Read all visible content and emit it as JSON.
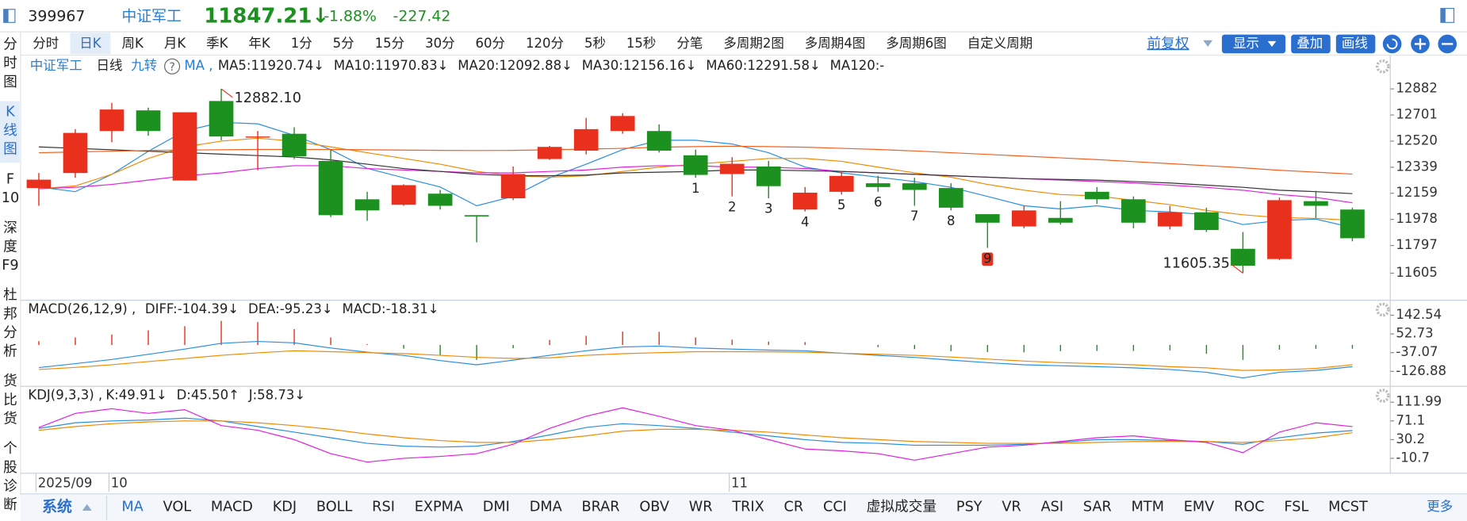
{
  "header": {
    "code": "399967",
    "name": "中证军工",
    "price": "11847.21↓",
    "change_pct": "-1.88%",
    "change": "-227.42"
  },
  "period_tabs": [
    "分时",
    "日K",
    "周K",
    "月K",
    "季K",
    "年K",
    "1分",
    "5分",
    "15分",
    "30分",
    "60分",
    "120分",
    "5秒",
    "15秒",
    "分笔",
    "多周期2图",
    "多周期4图",
    "多周期6图",
    "自定义周期"
  ],
  "active_tab": "日K",
  "toolbar": {
    "adjust": "前复权",
    "show": "显示",
    "overlay": "叠加",
    "draw": "画线"
  },
  "sidebar": [
    "分时图",
    "K线图",
    "F10",
    "深度F9",
    "杜邦分析",
    "货比货",
    "个股诊断"
  ],
  "active_side": "K线图",
  "chart": {
    "type": "candlestick",
    "title": "中证军工",
    "period": "日线",
    "nine_turn_label": "九转",
    "help": "?",
    "indicator": "MA ,",
    "ylim": [
      11424,
      13096
    ],
    "yticks": [
      12882,
      12701,
      12520,
      12339,
      12159,
      11978,
      11797,
      11605
    ],
    "up_color": "#e8301c",
    "down_color": "#1c9120",
    "open": [
      12195,
      12299,
      12590,
      12733,
      12247,
      12798,
      12545,
      12571,
      12383,
      12117,
      12079,
      12156,
      12007,
      12124,
      12396,
      12454,
      12590,
      12590,
      12422,
      12292,
      12344,
      12046,
      12169,
      12228,
      12228,
      12195,
      12014,
      11929,
      11988,
      12169,
      12117,
      11929,
      12027,
      11774,
      11703,
      12104,
      12046
    ],
    "close": [
      12253,
      12577,
      12739,
      12590,
      12720,
      12552,
      12552,
      12415,
      12007,
      12040,
      12215,
      12072,
      11998,
      12292,
      12480,
      12603,
      12694,
      12454,
      12286,
      12363,
      12208,
      12163,
      12279,
      12202,
      12182,
      12059,
      11955,
      12040,
      11955,
      12117,
      11955,
      12027,
      11904,
      11657,
      12111,
      12072,
      11847.21
    ],
    "high": [
      12299,
      12603,
      12785,
      12752,
      12720,
      12882.1,
      12590,
      12616,
      12461,
      12169,
      12221,
      12182,
      12007,
      12344,
      12487,
      12681,
      12713,
      12636,
      12461,
      12409,
      12383,
      12202,
      12312,
      12279,
      12266,
      12228,
      12014,
      12072,
      12104,
      12202,
      12137,
      12072,
      12059,
      11890,
      12130,
      12176,
      12059
    ],
    "low": [
      12072,
      12266,
      12513,
      12558,
      12247,
      12526,
      12318,
      12396,
      11994,
      11968,
      12072,
      12046,
      11819,
      12111,
      12390,
      12428,
      12571,
      12441,
      12266,
      12137,
      12124,
      12033,
      12150,
      12169,
      12072,
      12040,
      11780,
      11916,
      11942,
      12085,
      11916,
      11910,
      11890,
      11605.35,
      11696,
      11988,
      11826
    ],
    "high_label": "12882.10",
    "low_label": "11605.35",
    "nine_turn": [
      null,
      null,
      null,
      null,
      null,
      null,
      null,
      null,
      null,
      null,
      null,
      null,
      null,
      null,
      null,
      null,
      null,
      null,
      "1",
      "2",
      "3",
      "4",
      "5",
      "6",
      "7",
      "8",
      "9",
      null,
      null,
      null,
      null,
      null,
      null,
      null,
      null,
      null,
      null
    ],
    "ma": [
      {
        "name": "MA5:11920.74↓",
        "color": "#2a8ee0",
        "values": [
          12202,
          12170,
          12290,
          12450,
          12590,
          12650,
          12640,
          12560,
          12461,
          12331,
          12266,
          12202,
          12072,
          12137,
          12266,
          12360,
          12461,
          12526,
          12526,
          12500,
          12440,
          12340,
          12300,
          12270,
          12240,
          12200,
          12137,
          12072,
          12050,
          12072,
          12040,
          12030,
          12010,
          11942,
          11970,
          11980,
          11920.74
        ]
      },
      {
        "name": "MA10:11970.83↓",
        "color": "#f08a00",
        "values": [
          12190,
          12210,
          12290,
          12400,
          12480,
          12520,
          12540,
          12520,
          12480,
          12440,
          12400,
          12360,
          12310,
          12280,
          12270,
          12280,
          12310,
          12340,
          12360,
          12380,
          12400,
          12400,
          12380,
          12340,
          12300,
          12270,
          12220,
          12180,
          12150,
          12140,
          12110,
          12080,
          12040,
          12010,
          11990,
          11985,
          11970.83
        ]
      },
      {
        "name": "MA20:12092.88↓",
        "color": "#e020e0",
        "values": [
          12190,
          12200,
          12220,
          12250,
          12280,
          12300,
          12330,
          12350,
          12350,
          12330,
          12320,
          12310,
          12300,
          12300,
          12310,
          12320,
          12340,
          12350,
          12350,
          12340,
          12340,
          12330,
          12310,
          12300,
          12290,
          12280,
          12270,
          12260,
          12250,
          12240,
          12230,
          12215,
          12200,
          12180,
          12150,
          12130,
          12092.88
        ]
      },
      {
        "name": "MA30:12156.16↓",
        "color": "#333333",
        "values": [
          12480,
          12470,
          12460,
          12450,
          12440,
          12430,
          12420,
          12410,
          12390,
          12360,
          12330,
          12310,
          12290,
          12280,
          12280,
          12285,
          12300,
          12305,
          12310,
          12320,
          12320,
          12315,
          12310,
          12300,
          12290,
          12280,
          12270,
          12260,
          12255,
          12250,
          12240,
          12230,
          12215,
          12200,
          12180,
          12170,
          12156.16
        ]
      },
      {
        "name": "MA60:12291.58↓",
        "color": "#f06020",
        "values": [
          12440,
          12445,
          12450,
          12455,
          12458,
          12460,
          12462,
          12462,
          12462,
          12460,
          12458,
          12456,
          12455,
          12456,
          12460,
          12465,
          12470,
          12478,
          12482,
          12485,
          12482,
          12478,
          12470,
          12462,
          12452,
          12440,
          12428,
          12416,
          12404,
          12392,
          12378,
          12364,
          12350,
          12335,
          12318,
          12305,
          12291.58
        ]
      },
      {
        "name": "MA120:-",
        "color": "#7040b0"
      }
    ]
  },
  "macd": {
    "title": "MACD(26,12,9) ,",
    "ylim": [
      -194.2,
      209.9
    ],
    "yticks": [
      142.54,
      52.73,
      -37.07,
      -126.88
    ],
    "diff": {
      "name": "DIFF:-104.39↓",
      "color": "#2a8ee0",
      "values": [
        -108.9,
        -90,
        -70,
        -45,
        -20,
        7.8,
        16.8,
        10,
        -14.6,
        -35,
        -50.5,
        -75,
        -95.4,
        -73,
        -50,
        -28.1,
        -10,
        -5.6,
        -14.6,
        -20,
        -25,
        -28.1,
        -40,
        -50.5,
        -60,
        -73,
        -85,
        -95.4,
        -100,
        -104.4,
        -110,
        -117.9,
        -131.4,
        -158.3,
        -131.4,
        -122.4,
        -104.39
      ]
    },
    "dea": {
      "name": "DEA:-95.23↓",
      "color": "#f08a00",
      "values": [
        -117.9,
        -108,
        -95,
        -80,
        -65,
        -50,
        -38,
        -28.1,
        -32.6,
        -37.1,
        -41.6,
        -50,
        -59.5,
        -65,
        -62,
        -50,
        -42,
        -37.1,
        -32.6,
        -32.6,
        -33,
        -35,
        -40,
        -45,
        -50,
        -58,
        -68,
        -77.5,
        -85,
        -90,
        -95.4,
        -104.4,
        -110,
        -122.4,
        -120,
        -113,
        -95.23
      ]
    },
    "hist": {
      "name": "MACD:-18.31↓",
      "color": "#e020e0",
      "values": [
        18,
        36,
        50,
        70,
        90,
        115.6,
        109.6,
        76,
        36,
        4.2,
        -17.8,
        -50,
        -71.8,
        -16,
        24,
        43.8,
        64,
        63,
        36,
        25,
        16,
        13.8,
        0,
        -11,
        -20,
        -30,
        -34,
        -35.8,
        -30,
        -28.8,
        -29.2,
        -27,
        -42.8,
        -71.8,
        -22.8,
        -18.8,
        -18.31
      ]
    }
  },
  "kdj": {
    "title": "KDJ(9,3,3) ,",
    "ylim": [
      -41.4,
      144.7
    ],
    "yticks": [
      111.99,
      71.1,
      30.2,
      -10.7
    ],
    "k": {
      "name": "K:49.91↓",
      "color": "#2a8ee0",
      "values": [
        54.7,
        67.0,
        71.1,
        73.1,
        77.2,
        71.1,
        58.8,
        46.6,
        34.3,
        22.0,
        15.9,
        13.8,
        15.9,
        26.1,
        40.4,
        56.8,
        65.0,
        60.9,
        54.7,
        46.6,
        38.4,
        30.2,
        24.1,
        22.0,
        17.9,
        17.9,
        17.9,
        20.0,
        24.1,
        30.2,
        30.2,
        28.1,
        26.1,
        20.0,
        34.3,
        44.5,
        49.91
      ]
    },
    "d": {
      "name": "D:45.50↑",
      "color": "#f08a00",
      "values": [
        50.6,
        58.8,
        65.0,
        69.0,
        71.1,
        71.1,
        67.0,
        60.9,
        52.7,
        42.5,
        34.3,
        28.1,
        24.1,
        24.1,
        30.2,
        38.4,
        48.6,
        52.7,
        52.7,
        50.6,
        46.6,
        40.4,
        34.3,
        30.2,
        26.1,
        24.1,
        22.0,
        22.0,
        22.0,
        24.1,
        26.1,
        26.1,
        26.1,
        24.1,
        28.1,
        34.3,
        45.5
      ]
    },
    "j": {
      "name": "J:58.73↓",
      "color": "#e020e0",
      "values": [
        56.8,
        87.5,
        97.7,
        87.5,
        95.6,
        60.9,
        50.6,
        30.2,
        -0.5,
        -18.9,
        -10.7,
        -6.6,
        -0.5,
        20.0,
        54.7,
        81.3,
        99.7,
        81.3,
        60.9,
        50.6,
        30.2,
        9.7,
        5.7,
        -0.5,
        -14.8,
        -0.5,
        13.8,
        17.9,
        26.1,
        34.3,
        38.4,
        30.2,
        24.1,
        1.6,
        46.6,
        67.0,
        58.73
      ]
    }
  },
  "dates": [
    "2025/09",
    null,
    "10",
    null,
    null,
    null,
    null,
    null,
    null,
    null,
    null,
    null,
    null,
    null,
    null,
    null,
    null,
    null,
    null,
    "11",
    null,
    null,
    null,
    null,
    null,
    null,
    null,
    null,
    null,
    null,
    null,
    null,
    null,
    null,
    null,
    null,
    null
  ],
  "bottom_tabs": {
    "system": "系统",
    "items": [
      "MA",
      "VOL",
      "MACD",
      "KDJ",
      "BOLL",
      "RSI",
      "EXPMA",
      "DMI",
      "DMA",
      "BRAR",
      "OBV",
      "WR",
      "TRIX",
      "CR",
      "CCI",
      "虚拟成交量",
      "PSY",
      "VR",
      "ASI",
      "SAR",
      "MTM",
      "EMV",
      "ROC",
      "FSL",
      "MCST"
    ],
    "more": "更多"
  }
}
